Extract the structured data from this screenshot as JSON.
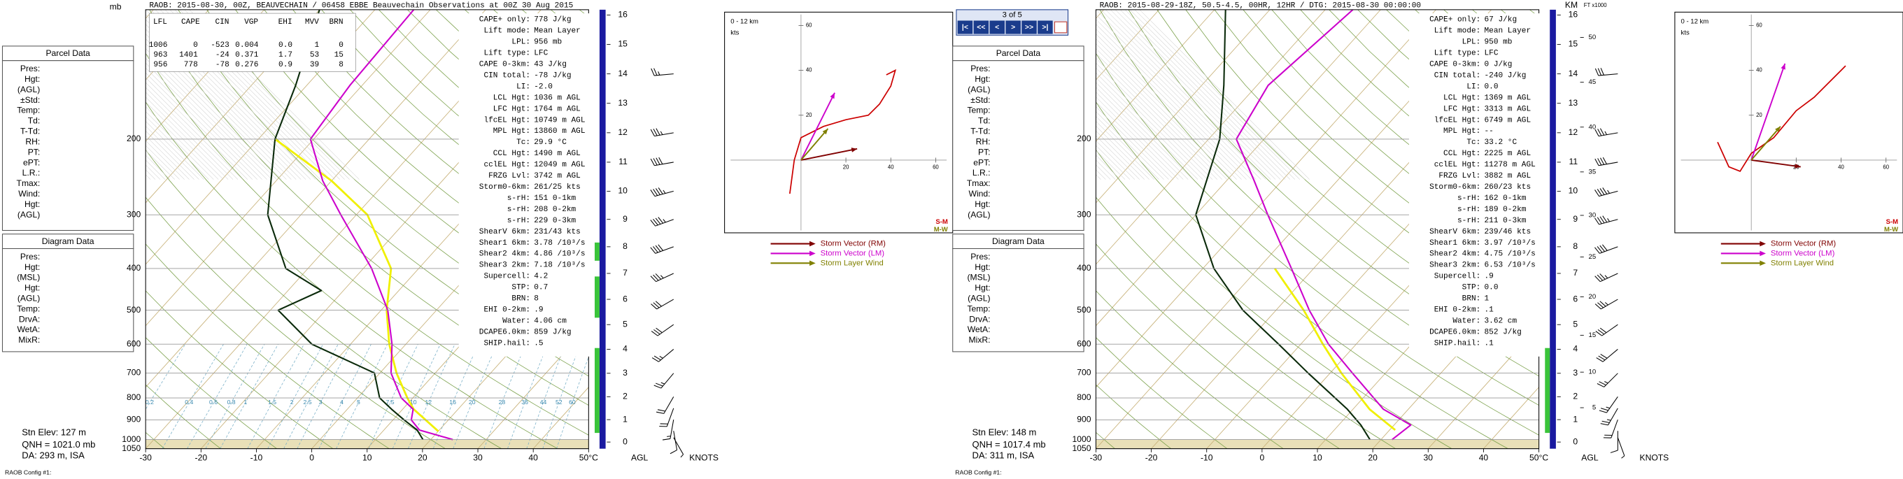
{
  "navigator": {
    "text": "3 of 5",
    "buttons": [
      "|<",
      "<<",
      "<",
      ">",
      ">>",
      ">|"
    ]
  },
  "panels": [
    {
      "header": "RAOB:  2015-08-30, 00Z, BEAUVECHAIN / 06458 EBBE Beauvechain Observations at 00Z 30 Aug 2015",
      "summary_table": {
        "columns": [
          "LFL",
          "CAPE",
          "CIN",
          "VGP",
          "EHI",
          "MVV",
          "BRN"
        ],
        "rows": [
          [
            "1006",
            "0",
            "-523",
            "0.004",
            "0.0",
            "1",
            "0"
          ],
          [
            "963",
            "1401",
            "-24",
            "0.371",
            "1.7",
            "53",
            "15"
          ],
          [
            "956",
            "778",
            "-78",
            "0.276",
            "0.9",
            "39",
            "8"
          ]
        ]
      },
      "parcel_data": {
        "title": "Parcel Data",
        "fields": [
          "Pres:",
          "Hgt:",
          "(AGL)",
          "±Std:",
          "Temp:",
          "Td:",
          "T-Td:",
          "RH:",
          "PT:",
          "ePT:",
          "L.R.:",
          "Tmax:",
          "Wind:",
          "Hgt:",
          "(AGL)"
        ]
      },
      "diagram_data": {
        "title": "Diagram Data",
        "fields": [
          "Pres:",
          "Hgt:",
          "(MSL)",
          "Hgt:",
          "(AGL)",
          "Temp:",
          "DrvA:",
          "WetA:",
          "MixR:"
        ]
      },
      "station": [
        "Stn Elev: 127 m",
        "QNH = 1021.0 mb",
        "DA: 293 m, ISA",
        "RAOB Config #1:"
      ],
      "indices": [
        [
          "CAPE+ only:",
          "778 J/kg"
        ],
        [
          "Lift mode:",
          "Mean Layer"
        ],
        [
          "LPL:",
          "956 mb"
        ],
        [
          "Lift type:",
          "LFC"
        ],
        [
          "CAPE 0-3km:",
          "43 J/kg"
        ],
        [
          "CIN total:",
          "-78 J/kg"
        ],
        [
          "LI:",
          "-2.0"
        ],
        [
          "LCL Hgt:",
          "1036 m AGL"
        ],
        [
          "LFC Hgt:",
          "1764 m AGL"
        ],
        [
          "lfcEL Hgt:",
          "10749 m AGL"
        ],
        [
          "MPL Hgt:",
          "13860 m AGL"
        ],
        [
          "Tc:",
          "29.9 °C"
        ],
        [
          "CCL Hgt:",
          "1490 m AGL"
        ],
        [
          "cclEL Hgt:",
          "12049 m AGL"
        ],
        [
          "FRZG Lvl:",
          "3742 m AGL"
        ],
        [
          "Storm0-6km:",
          "261/25 kts"
        ],
        [
          "s-rH:",
          "151  0-1km"
        ],
        [
          "s-rH:",
          "208  0-2km"
        ],
        [
          "s-rH:",
          "229  0-3km"
        ],
        [
          "ShearV 6km:",
          "231/43 kts"
        ],
        [
          "Shear1 6km:",
          "3.78 /10³/s"
        ],
        [
          "Shear2 4km:",
          "4.86 /10³/s"
        ],
        [
          "Shear3 2km:",
          "7.18 /10³/s"
        ],
        [
          "Supercell:",
          "4.2"
        ],
        [
          "STP:",
          "0.7"
        ],
        [
          "BRN:",
          "8"
        ],
        [
          "EHI 0-2km:",
          ".9"
        ],
        [
          "Water:",
          "4.06 cm"
        ],
        [
          "DCAPE6.0km:",
          "859 J/kg"
        ],
        [
          "SHIP.hail:",
          ".5"
        ]
      ],
      "skewt": {
        "pressure_unit": "mb",
        "plim": [
          100,
          1050
        ],
        "tlim": [
          -30,
          50
        ],
        "pressure_ticks": [
          200,
          300,
          400,
          500,
          600,
          700,
          800,
          900,
          1000,
          1050
        ],
        "temp_ticks": [
          -30,
          -20,
          -10,
          0,
          10,
          20,
          30,
          40,
          {
            "value": 50,
            "label": "50°C"
          }
        ],
        "mixing_ratio_labels": [
          0.2,
          0.4,
          0.6,
          0.8,
          1,
          1.5,
          2,
          2.5,
          3,
          4,
          5,
          7.5,
          10,
          12,
          16,
          20,
          28,
          36,
          44,
          52,
          60
        ],
        "temperature": {
          "color": "#cc00cc",
          "pressure": [
            1000,
            950,
            900,
            850,
            800,
            700,
            600,
            500,
            400,
            300,
            250,
            200,
            150,
            100
          ],
          "values": [
            24,
            16.4,
            13.3,
            11.9,
            7.9,
            2,
            -2.5,
            -8.8,
            -18.5,
            -32.8,
            -41.6,
            -50.6,
            -52.2,
            -53
          ]
        },
        "dewpoint": {
          "color": "#0a2a0a",
          "pressure": [
            1000,
            950,
            900,
            850,
            800,
            700,
            600,
            500,
            450,
            400,
            300,
            200,
            150,
            100
          ],
          "values": [
            18.6,
            16,
            12,
            8,
            4,
            -1,
            -17,
            -28.6,
            -24,
            -34,
            -46,
            -57,
            -62,
            -70
          ]
        },
        "parcel": {
          "color": "#f0f000",
          "pressure": [
            956,
            850,
            800,
            700,
            600,
            500,
            400,
            300,
            250,
            200
          ],
          "values": [
            20,
            12,
            9,
            3,
            -3,
            -9,
            -15,
            -28,
            -40,
            -57
          ]
        }
      },
      "height_axis": {
        "km_ticks": [
          0,
          1,
          2,
          3,
          4,
          5,
          6,
          7,
          8,
          9,
          10,
          11,
          12,
          13,
          14,
          15,
          16
        ],
        "bottom_label": "AGL"
      },
      "winds": {
        "label": "KNOTS",
        "km": [
          0.2,
          0.5,
          1,
          1.5,
          2,
          3,
          4,
          5,
          6,
          7,
          8,
          9,
          10,
          11,
          12,
          14
        ],
        "direction": [
          150,
          170,
          190,
          200,
          210,
          220,
          230,
          235,
          240,
          245,
          250,
          250,
          255,
          260,
          260,
          265
        ],
        "speed": [
          5,
          10,
          15,
          20,
          20,
          25,
          25,
          30,
          30,
          35,
          40,
          45,
          45,
          40,
          35,
          25
        ]
      },
      "hodograph": {
        "title": "0 - 12 km",
        "unit": "kts",
        "xticks": [
          20,
          40,
          60
        ],
        "yticks": [
          20,
          40,
          60
        ],
        "color": "#cc0000",
        "u": [
          -5,
          -3,
          0,
          10,
          20,
          30,
          35,
          40,
          42,
          38
        ],
        "v": [
          -15,
          0,
          10,
          15,
          18,
          20,
          25,
          33,
          40,
          38
        ],
        "storm_vectors": [
          {
            "name": "Storm Vector (RM)",
            "color": "#800000",
            "u": 25,
            "v": 5
          },
          {
            "name": "Storm Vector (LM)",
            "color": "#cc00cc",
            "u": 15,
            "v": 30
          },
          {
            "name": "Storm Layer Wind",
            "color": "#808000",
            "u": 12,
            "v": 14
          }
        ],
        "corner_labels": [
          "S-M",
          "M-W"
        ]
      }
    },
    {
      "header": "RAOB:  2015-08-29-18Z, 50.5-4.5, 00HR, 12HR / DTG: 2015-08-30 00:00:00",
      "parcel_data": {
        "title": "Parcel Data",
        "fields": [
          "Pres:",
          "Hgt:",
          "(AGL)",
          "±Std:",
          "Temp:",
          "Td:",
          "T-Td:",
          "RH:",
          "PT:",
          "ePT:",
          "L.R.:",
          "Tmax:",
          "Wind:",
          "Hgt:",
          "(AGL)"
        ]
      },
      "diagram_data": {
        "title": "Diagram Data",
        "fields": [
          "Pres:",
          "Hgt:",
          "(MSL)",
          "Hgt:",
          "(AGL)",
          "Temp:",
          "DrvA:",
          "WetA:",
          "MixR:"
        ]
      },
      "station": [
        "Stn Elev: 148 m",
        "QNH = 1017.4 mb",
        "DA: 311 m, ISA",
        "RAOB Config #1:"
      ],
      "indices": [
        [
          "CAPE+ only:",
          "67 J/kg"
        ],
        [
          "Lift mode:",
          "Mean Layer"
        ],
        [
          "LPL:",
          "950 mb"
        ],
        [
          "Lift type:",
          "LFC"
        ],
        [
          "CAPE 0-3km:",
          "0 J/kg"
        ],
        [
          "CIN total:",
          "-240 J/kg"
        ],
        [
          "LI:",
          "0.0"
        ],
        [
          "LCL Hgt:",
          "1369 m AGL"
        ],
        [
          "LFC Hgt:",
          "3313 m AGL"
        ],
        [
          "lfcEL Hgt:",
          "6749 m AGL"
        ],
        [
          "MPL Hgt:",
          "--"
        ],
        [
          "Tc:",
          "33.2 °C"
        ],
        [
          "CCL Hgt:",
          "2225 m AGL"
        ],
        [
          "cclEL Hgt:",
          "11278 m AGL"
        ],
        [
          "FRZG Lvl:",
          "3882 m AGL"
        ],
        [
          "Storm0-6km:",
          "260/23 kts"
        ],
        [
          "s-rH:",
          "162  0-1km"
        ],
        [
          "s-rH:",
          "189  0-2km"
        ],
        [
          "s-rH:",
          "211  0-3km"
        ],
        [
          "ShearV 6km:",
          "239/46 kts"
        ],
        [
          "Shear1 6km:",
          "3.97 /10³/s"
        ],
        [
          "Shear2 4km:",
          "4.75 /10³/s"
        ],
        [
          "Shear3 2km:",
          "6.53 /10³/s"
        ],
        [
          "Supercell:",
          ".9"
        ],
        [
          "STP:",
          "0.0"
        ],
        [
          "BRN:",
          "1"
        ],
        [
          "EHI 0-2km:",
          ".1"
        ],
        [
          "Water:",
          "3.62 cm"
        ],
        [
          "DCAPE6.0km:",
          "852 J/kg"
        ],
        [
          "SHIP.hail:",
          ".1"
        ]
      ],
      "skewt": {
        "plim": [
          100,
          1050
        ],
        "tlim": [
          -30,
          50
        ],
        "pressure_ticks": [
          200,
          300,
          400,
          500,
          600,
          700,
          800,
          900,
          1000,
          1050
        ],
        "temp_ticks": [
          -30,
          -20,
          -10,
          0,
          10,
          20,
          30,
          40,
          {
            "value": 50,
            "label": "50°C"
          }
        ],
        "temperature": {
          "color": "#cc00cc",
          "pressure": [
            1000,
            925,
            850,
            700,
            600,
            500,
            400,
            300,
            250,
            200,
            150,
            100
          ],
          "values": [
            22,
            23,
            15.5,
            4,
            -5,
            -14,
            -24,
            -37,
            -45,
            -55,
            -58,
            -55
          ]
        },
        "dewpoint": {
          "color": "#0a2a0a",
          "pressure": [
            1000,
            925,
            850,
            700,
            600,
            500,
            400,
            300,
            200,
            150,
            100
          ],
          "values": [
            18,
            14,
            9,
            -4,
            -14,
            -26,
            -38,
            -50,
            -58,
            -66,
            -78
          ]
        },
        "parcel": {
          "color": "#f0f000",
          "pressure": [
            950,
            850,
            700,
            600,
            500,
            400
          ],
          "values": [
            21,
            13,
            2,
            -6,
            -15,
            -27
          ]
        }
      },
      "height_axis": {
        "label": "KM",
        "ft_label": "FT x1000",
        "km_ticks": [
          0,
          1,
          2,
          3,
          4,
          5,
          6,
          7,
          8,
          9,
          10,
          11,
          12,
          13,
          14,
          15,
          16
        ],
        "ft_ticks": [
          5,
          10,
          15,
          20,
          25,
          30,
          35,
          40,
          45,
          50
        ],
        "bottom_label": "AGL"
      },
      "winds": {
        "label": "KNOTS",
        "km": [
          0.2,
          0.5,
          1,
          1.5,
          2,
          3,
          4,
          5,
          6,
          7,
          8,
          9,
          10,
          11,
          12,
          14
        ],
        "direction": [
          160,
          180,
          200,
          210,
          215,
          225,
          230,
          235,
          240,
          245,
          250,
          255,
          255,
          260,
          260,
          265
        ],
        "speed": [
          5,
          10,
          20,
          25,
          25,
          25,
          30,
          30,
          35,
          35,
          40,
          45,
          45,
          40,
          35,
          30
        ]
      },
      "hodograph": {
        "title": "0 - 12 km",
        "unit": "kts",
        "xticks": [
          20,
          40,
          60
        ],
        "yticks": [
          20,
          40,
          60
        ],
        "color": "#cc0000",
        "u": [
          -15,
          -10,
          -5,
          0,
          10,
          20,
          28,
          35,
          40,
          42
        ],
        "v": [
          8,
          -3,
          -5,
          3,
          10,
          22,
          28,
          35,
          40,
          42
        ],
        "storm_vectors": [
          {
            "name": "Storm Vector (RM)",
            "color": "#800000",
            "u": 22,
            "v": -3
          },
          {
            "name": "Storm Vector (LM)",
            "color": "#cc00cc",
            "u": 15,
            "v": 43
          },
          {
            "name": "Storm Layer Wind",
            "color": "#808000",
            "u": 13,
            "v": 15
          }
        ],
        "corner_labels": [
          "S-M",
          "M-W"
        ]
      }
    }
  ]
}
